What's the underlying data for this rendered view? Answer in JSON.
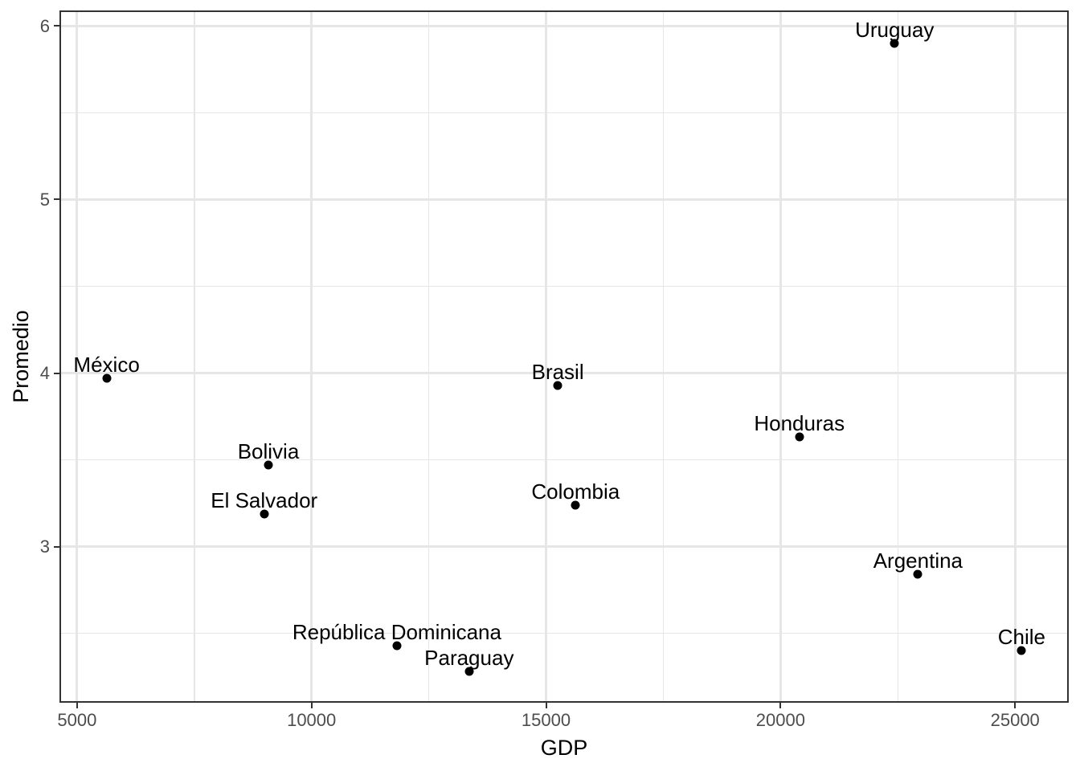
{
  "figure": {
    "background_color": "#ffffff",
    "panel_border_color": "#333333",
    "grid_color": "#e6e6e6",
    "tick_label_color": "#4d4d4d",
    "axis_title_color": "#000000",
    "point_color": "#000000"
  },
  "chart_data": {
    "type": "scatter",
    "title": "",
    "xlabel": "GDP",
    "ylabel": "Promedio",
    "xlim": [
      4660,
      26110
    ],
    "ylim": [
      2.11,
      6.08
    ],
    "x_major_ticks": [
      5000,
      10000,
      15000,
      20000,
      25000
    ],
    "x_minor_ticks": [
      7500,
      12500,
      17500,
      22500
    ],
    "y_major_ticks": [
      3,
      4,
      5,
      6
    ],
    "y_minor_ticks": [
      2.5,
      3.5,
      4.5,
      5.5
    ],
    "grid": true,
    "legend": "none",
    "points": [
      {
        "label": "México",
        "x": 5630,
        "y": 3.97
      },
      {
        "label": "Bolivia",
        "x": 9080,
        "y": 3.47
      },
      {
        "label": "El Salvador",
        "x": 8990,
        "y": 3.19
      },
      {
        "label": "República Dominicana",
        "x": 11820,
        "y": 2.43
      },
      {
        "label": "Paraguay",
        "x": 13360,
        "y": 2.28
      },
      {
        "label": "Brasil",
        "x": 15250,
        "y": 3.93
      },
      {
        "label": "Colombia",
        "x": 15630,
        "y": 3.24
      },
      {
        "label": "Honduras",
        "x": 20400,
        "y": 3.63
      },
      {
        "label": "Uruguay",
        "x": 22430,
        "y": 5.9
      },
      {
        "label": "Argentina",
        "x": 22930,
        "y": 2.84
      },
      {
        "label": "Chile",
        "x": 25140,
        "y": 2.4
      }
    ]
  }
}
